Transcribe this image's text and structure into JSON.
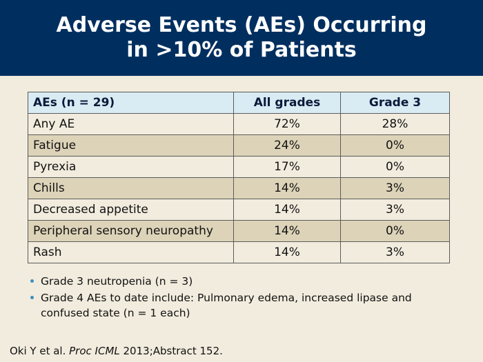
{
  "title": {
    "line1": "Adverse Events (AEs) Occurring",
    "line2": "in >10% of Patients"
  },
  "table": {
    "headers": [
      "AEs (n = 29)",
      "All grades",
      "Grade 3"
    ],
    "rows": [
      [
        "Any AE",
        "72%",
        "28%"
      ],
      [
        "Fatigue",
        "24%",
        "0%"
      ],
      [
        "Pyrexia",
        "17%",
        "0%"
      ],
      [
        "Chills",
        "14%",
        "3%"
      ],
      [
        "Decreased appetite",
        "14%",
        "3%"
      ],
      [
        "Peripheral sensory neuropathy",
        "14%",
        "0%"
      ],
      [
        "Rash",
        "14%",
        "3%"
      ]
    ]
  },
  "bullets": [
    "Grade 3 neutropenia (n = 3)",
    "Grade 4 AEs to date include: Pulmonary edema, increased lipase and confused state (n = 1 each)"
  ],
  "citation": {
    "authors": "Oki Y et al. ",
    "journal": "Proc ICML",
    "rest": " 2013;Abstract 152."
  },
  "colors": {
    "header_bg": "#002f5f",
    "page_bg": "#f2ecde",
    "table_header_bg": "#d9ebf3",
    "row_alt_bg": "#ddd3b8",
    "bullet": "#3a8fbf"
  }
}
